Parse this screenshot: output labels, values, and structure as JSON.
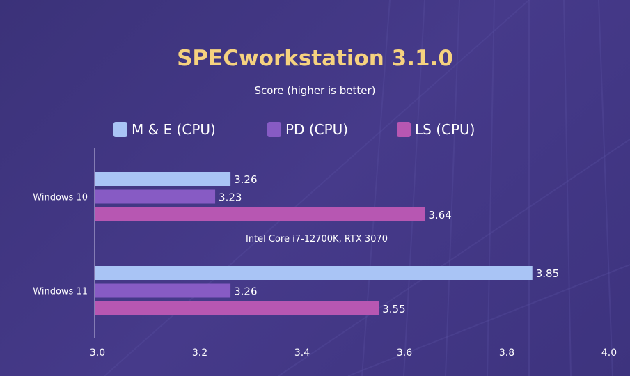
{
  "chart_data": {
    "type": "bar",
    "orientation": "horizontal",
    "title": "SPECworkstation 3.1.0",
    "subtitle": "Score (higher is better)",
    "annotation": "Intel Core i7-12700K, RTX 3070",
    "categories": [
      "Windows 10",
      "Windows 11"
    ],
    "series": [
      {
        "name": "M & E (CPU)",
        "color": "#a9c4f5",
        "values": [
          3.26,
          3.85
        ],
        "labels": [
          "3.26",
          "3.85"
        ]
      },
      {
        "name": "PD (CPU)",
        "color": "#875bc4",
        "values": [
          3.23,
          3.26
        ],
        "labels": [
          "3.23",
          "3.26"
        ]
      },
      {
        "name": "LS (CPU)",
        "color": "#b757b2",
        "values": [
          3.64,
          3.55
        ],
        "labels": [
          "3.64",
          "3.55"
        ]
      }
    ],
    "xlim": [
      3.0,
      4.0
    ],
    "xticks": [
      "3.0",
      "3.2",
      "3.4",
      "3.6",
      "3.8",
      "4.0"
    ],
    "grid": false,
    "legend": "top",
    "title_color": "#f6d27f",
    "background": "#3f3580"
  }
}
